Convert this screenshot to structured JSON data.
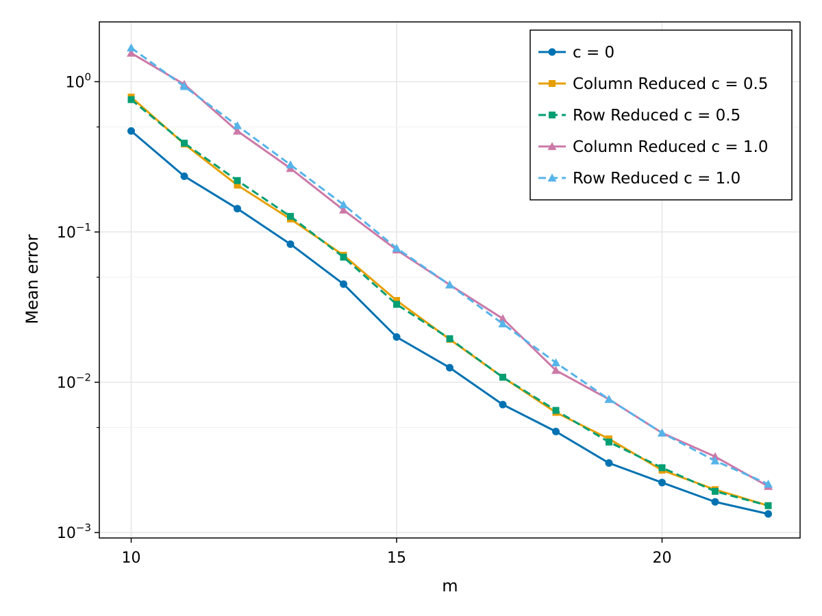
{
  "chart_data": {
    "type": "line",
    "xlabel": "m",
    "ylabel": "Mean error",
    "xlim": [
      9.4,
      22.6
    ],
    "ylim": [
      0.00092,
      2.5
    ],
    "yscale": "log",
    "grid": true,
    "legend_position": "top-right",
    "x_ticks": [
      {
        "value": 10,
        "label": "10"
      },
      {
        "value": 15,
        "label": "15"
      },
      {
        "value": 20,
        "label": "20"
      }
    ],
    "y_ticks": [
      {
        "value": 1,
        "base": "10",
        "exp": "0"
      },
      {
        "value": 0.1,
        "base": "10",
        "exp": "−1"
      },
      {
        "value": 0.01,
        "base": "10",
        "exp": "−2"
      },
      {
        "value": 0.001,
        "base": "10",
        "exp": "−3"
      }
    ],
    "x": [
      10,
      11,
      12,
      13,
      14,
      15,
      16,
      17,
      18,
      19,
      20,
      21,
      22
    ],
    "series": [
      {
        "name": "c = 0",
        "color": "#0072b2",
        "marker": "circle",
        "dash": "solid",
        "values": [
          0.47,
          0.235,
          0.143,
          0.083,
          0.045,
          0.02,
          0.0125,
          0.0071,
          0.0047,
          0.0029,
          0.00215,
          0.0016,
          0.00133
        ]
      },
      {
        "name": "Column Reduced c = 0.5",
        "color": "#e69f00",
        "marker": "square",
        "dash": "solid",
        "values": [
          0.79,
          0.385,
          0.205,
          0.122,
          0.07,
          0.035,
          0.0193,
          0.0108,
          0.0063,
          0.0042,
          0.0026,
          0.00193,
          0.00151
        ]
      },
      {
        "name": "Row Reduced c = 0.5",
        "color": "#009e73",
        "marker": "square",
        "dash": "dashed",
        "values": [
          0.76,
          0.39,
          0.22,
          0.127,
          0.068,
          0.033,
          0.0195,
          0.0108,
          0.0065,
          0.004,
          0.0027,
          0.00188,
          0.00151
        ]
      },
      {
        "name": "Column Reduced c = 1.0",
        "color": "#cc79a7",
        "marker": "triangle",
        "dash": "solid",
        "values": [
          1.55,
          0.96,
          0.47,
          0.265,
          0.14,
          0.076,
          0.0445,
          0.0265,
          0.012,
          0.0077,
          0.0046,
          0.0032,
          0.00203
        ]
      },
      {
        "name": "Row Reduced c = 1.0",
        "color": "#56b4e9",
        "marker": "triangle",
        "dash": "dashed",
        "values": [
          1.68,
          0.93,
          0.51,
          0.28,
          0.152,
          0.078,
          0.0445,
          0.0245,
          0.0135,
          0.0077,
          0.0046,
          0.003,
          0.0021
        ]
      }
    ]
  }
}
